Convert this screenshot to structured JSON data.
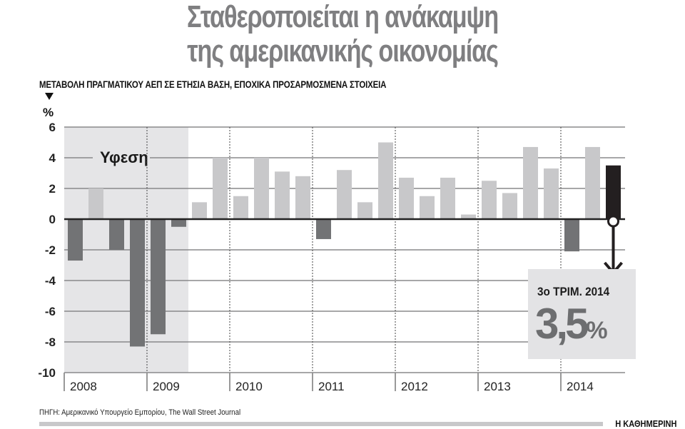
{
  "header": {
    "title_line1": "Σταθεροποιείται η ανάκαμψη",
    "title_line2": "της αμερικανικής οικονομίας",
    "subtitle": "ΜΕΤΑΒΟΛΗ ΠΡΑΓΜΑΤΙΚΟΥ ΑΕΠ ΣΕ ΕΤΗΣΙΑ ΒΑΣΗ, ΕΠΟΧΙΚΑ ΠΡΟΣΑΡΜΟΣΜΕΝΑ ΣΤΟΙΧΕΙΑ",
    "unit": "%"
  },
  "recession_label": "Υφεση",
  "callout": {
    "label": "3ο ΤΡΙΜ. 2014",
    "value": "3,5",
    "unit": "%"
  },
  "footer": {
    "source": "ΠΗΓΗ: Αμερικανικό Υπουργείο Εμπορίου, The Wall Street Journal",
    "brand": "Η ΚΑΘΗΜΕΡΙΝΗ"
  },
  "colors": {
    "title": "#7f7f81",
    "positive_bar": "#c8c8ca",
    "negative_bar": "#727375",
    "highlight_bar": "#231f20",
    "recession_shade": "#e5e5e7",
    "callout_bg": "#e3e3e5"
  },
  "chart_data": {
    "type": "bar",
    "title": "Σταθεροποιείται η ανάκαμψη της αμερικανικής οικονομίας",
    "subtitle": "ΜΕΤΑΒΟΛΗ ΠΡΑΓΜΑΤΙΚΟΥ ΑΕΠ ΣΕ ΕΤΗΣΙΑ ΒΑΣΗ, ΕΠΟΧΙΚΑ ΠΡΟΣΑΡΜΟΣΜΕΝΑ ΣΤΟΙΧΕΙΑ",
    "xlabel": "",
    "ylabel": "%",
    "ylim": [
      -10,
      6
    ],
    "yticks": [
      6,
      4,
      2,
      0,
      -2,
      -4,
      -6,
      -8,
      -10
    ],
    "year_labels": [
      "2008",
      "2009",
      "2010",
      "2011",
      "2012",
      "2013",
      "2014"
    ],
    "grid": true,
    "categories": [
      "2008 Q1",
      "2008 Q2",
      "2008 Q3",
      "2008 Q4",
      "2009 Q1",
      "2009 Q2",
      "2009 Q3",
      "2009 Q4",
      "2010 Q1",
      "2010 Q2",
      "2010 Q3",
      "2010 Q4",
      "2011 Q1",
      "2011 Q2",
      "2011 Q3",
      "2011 Q4",
      "2012 Q1",
      "2012 Q2",
      "2012 Q3",
      "2012 Q4",
      "2013 Q1",
      "2013 Q2",
      "2013 Q3",
      "2013 Q4",
      "2014 Q1",
      "2014 Q2",
      "2014 Q3"
    ],
    "values": [
      -2.7,
      2.0,
      -2.0,
      -8.3,
      -7.5,
      -0.5,
      1.1,
      4.0,
      1.5,
      4.0,
      3.1,
      2.8,
      -1.3,
      3.2,
      1.1,
      5.0,
      2.7,
      1.5,
      2.7,
      0.3,
      2.5,
      1.7,
      4.7,
      3.3,
      -2.1,
      4.7,
      3.5
    ],
    "recession_period": [
      "2008 Q1",
      "2009 Q2"
    ],
    "annotations": [
      {
        "text": "Υφεση",
        "position": "recession shaded area"
      },
      {
        "text": "3ο ΤΡΙΜ. 2014 3,5%",
        "target": "2014 Q3"
      }
    ]
  }
}
